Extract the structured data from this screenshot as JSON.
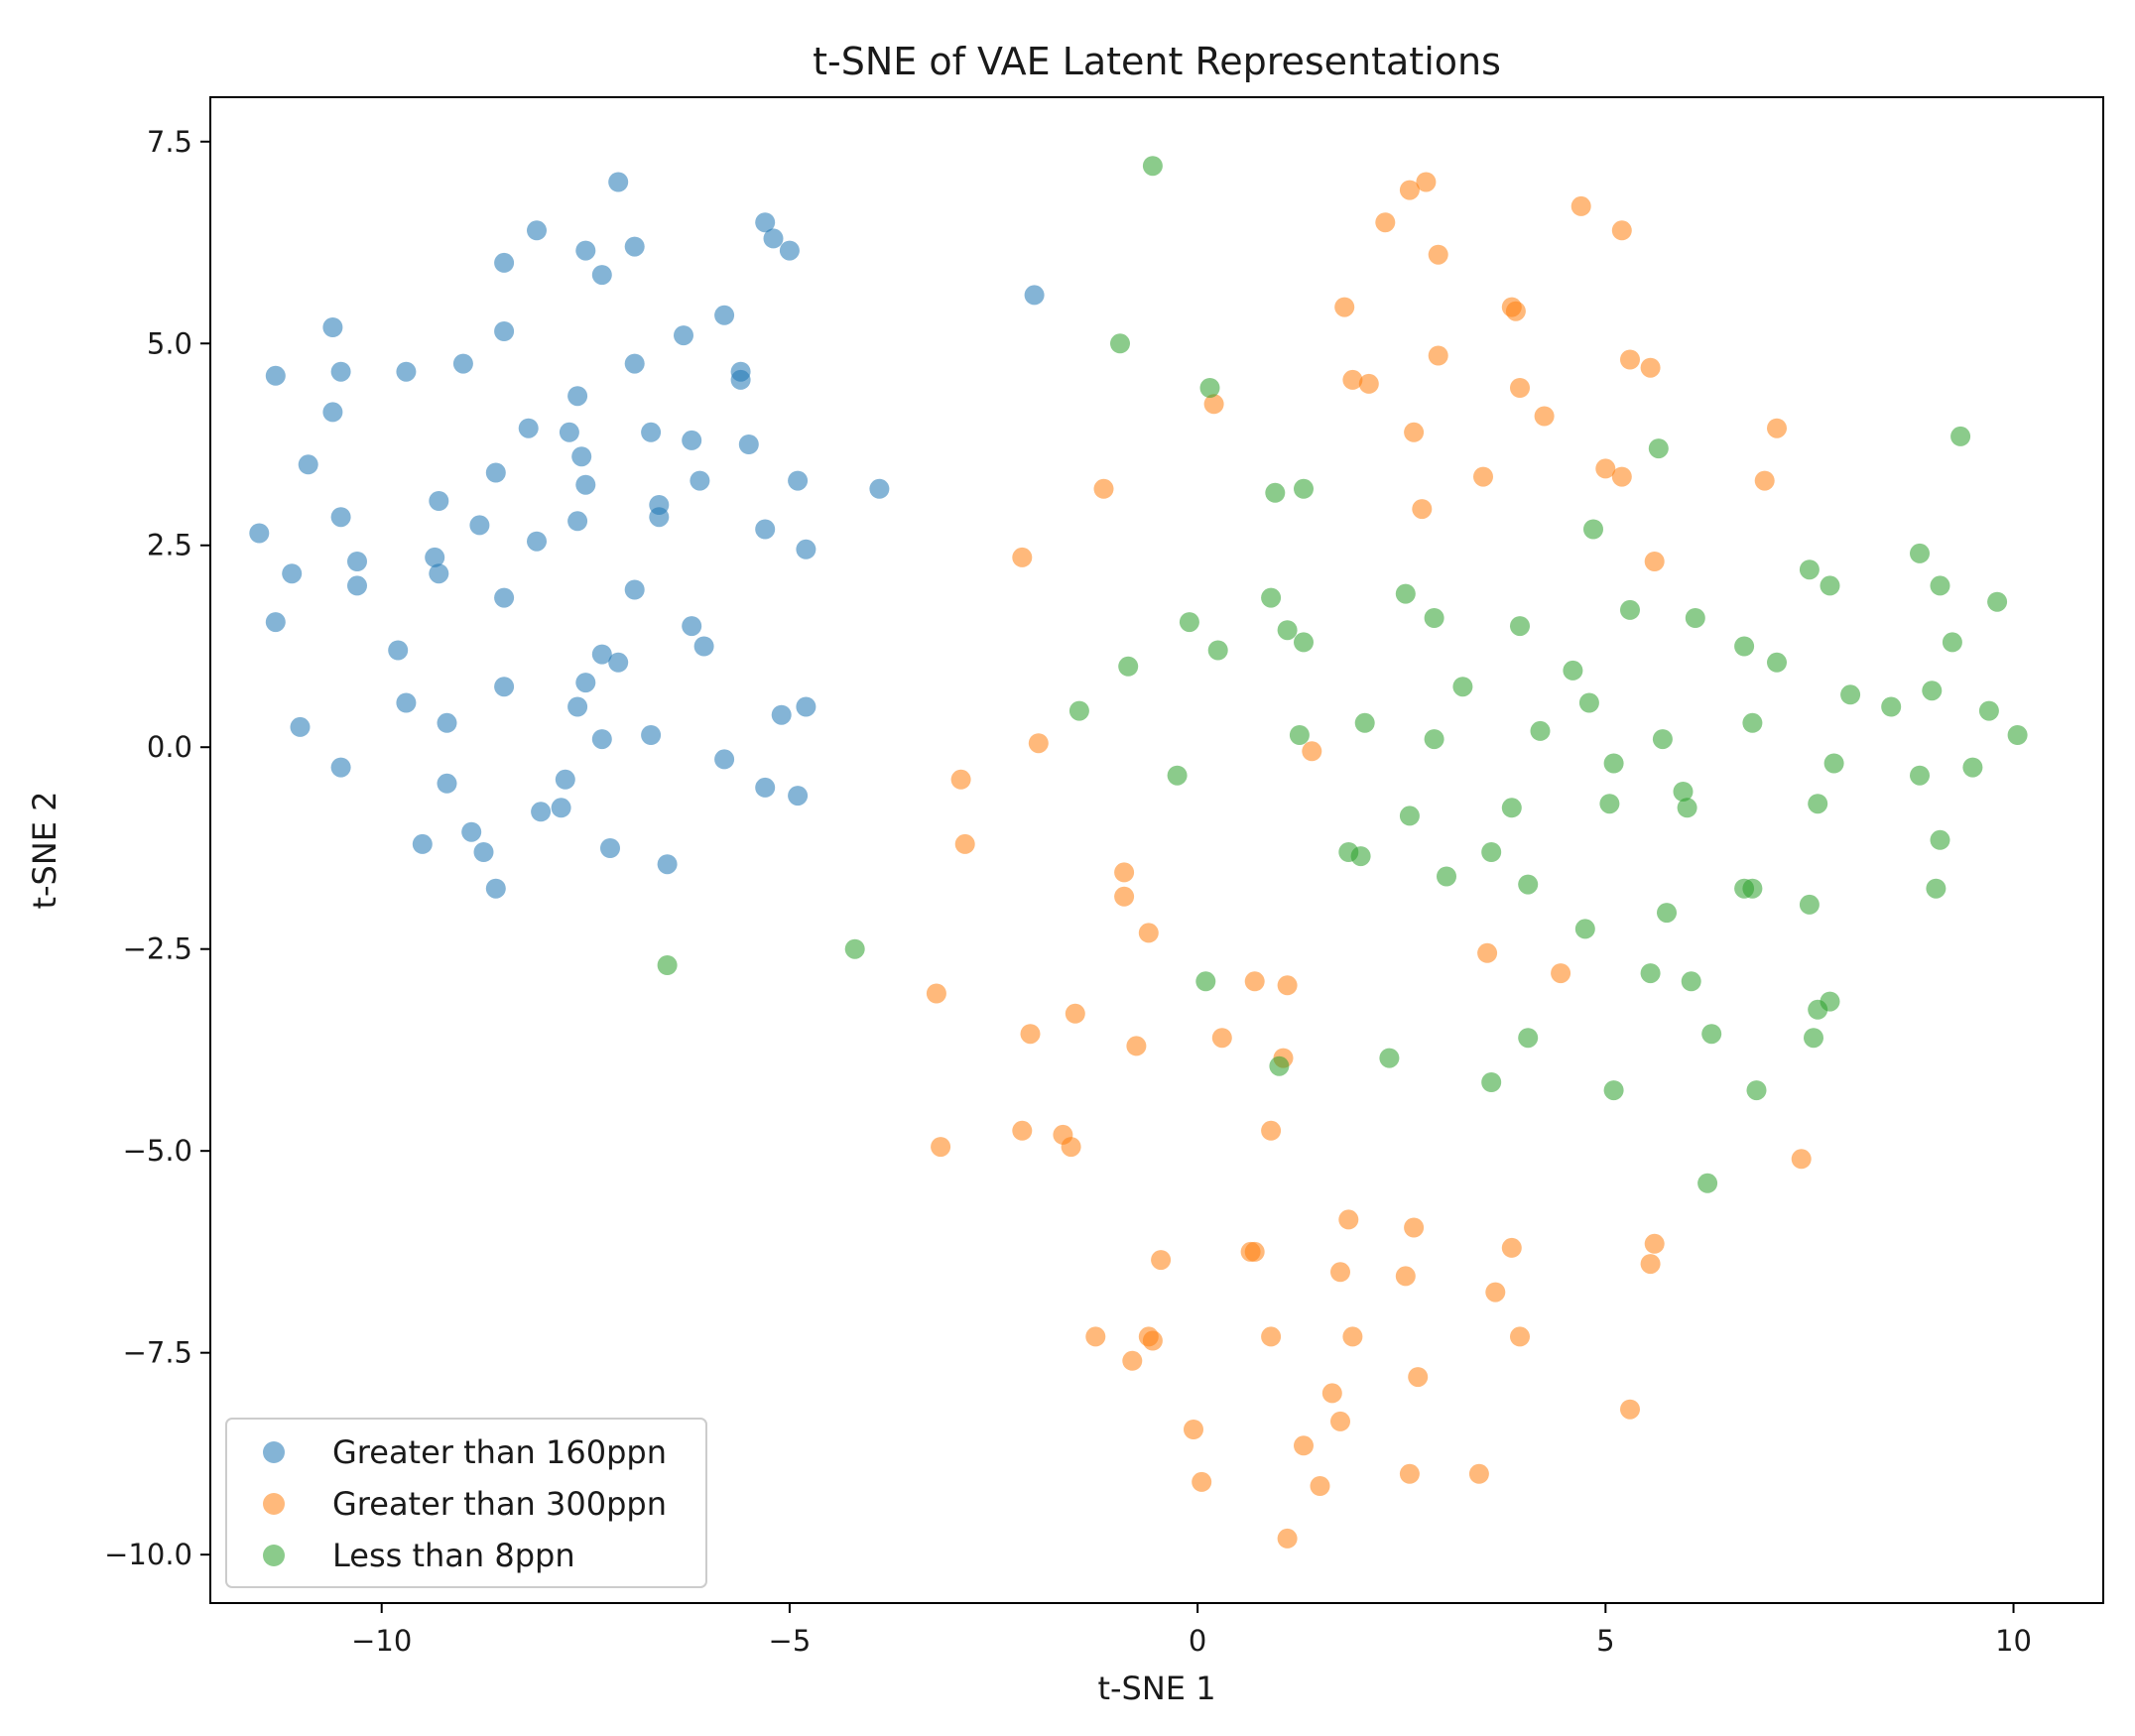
{
  "chart_data": {
    "type": "scatter",
    "title": "t-SNE of VAE Latent Representations",
    "xlabel": "t-SNE 1",
    "ylabel": "t-SNE 2",
    "xlim": [
      -12.1,
      11.1
    ],
    "ylim": [
      -10.6,
      8.05
    ],
    "xticks": [
      -10,
      -5,
      0,
      5,
      10
    ],
    "xtick_labels": [
      "−10",
      "−5",
      "0",
      "5",
      "10"
    ],
    "yticks": [
      7.5,
      5.0,
      2.5,
      0.0,
      -2.5,
      -5.0,
      -7.5,
      -10.0
    ],
    "ytick_labels": [
      "7.5",
      "5.0",
      "2.5",
      "0.0",
      "−2.5",
      "−5.0",
      "−7.5",
      "−10.0"
    ],
    "grid": false,
    "legend_position": "lower-left",
    "series": [
      {
        "name": "Greater than 160ppn",
        "color": "#1f77b4",
        "alpha": 0.55,
        "points": [
          [
            -7.1,
            7.0
          ],
          [
            -8.1,
            6.4
          ],
          [
            -5.3,
            6.5
          ],
          [
            -5.2,
            6.3
          ],
          [
            -5.0,
            6.15
          ],
          [
            -7.5,
            6.15
          ],
          [
            -6.9,
            6.2
          ],
          [
            -8.5,
            6.0
          ],
          [
            -7.3,
            5.85
          ],
          [
            -10.6,
            5.2
          ],
          [
            -11.3,
            4.6
          ],
          [
            -10.5,
            4.65
          ],
          [
            -9.7,
            4.65
          ],
          [
            -9.0,
            4.75
          ],
          [
            -8.5,
            5.15
          ],
          [
            -6.9,
            4.75
          ],
          [
            -6.3,
            5.1
          ],
          [
            -5.8,
            5.35
          ],
          [
            -5.6,
            4.65
          ],
          [
            -5.6,
            4.55
          ],
          [
            -10.6,
            4.15
          ],
          [
            -10.9,
            3.5
          ],
          [
            -8.2,
            3.95
          ],
          [
            -7.7,
            3.9
          ],
          [
            -7.6,
            4.35
          ],
          [
            -6.7,
            3.9
          ],
          [
            -6.2,
            3.8
          ],
          [
            -5.5,
            3.75
          ],
          [
            -7.55,
            3.6
          ],
          [
            -7.5,
            3.25
          ],
          [
            -8.6,
            3.4
          ],
          [
            -9.3,
            3.05
          ],
          [
            -6.6,
            3.0
          ],
          [
            -6.1,
            3.3
          ],
          [
            -4.9,
            3.3
          ],
          [
            -3.9,
            3.2
          ],
          [
            -11.5,
            2.65
          ],
          [
            -10.5,
            2.85
          ],
          [
            -8.8,
            2.75
          ],
          [
            -8.1,
            2.55
          ],
          [
            -7.6,
            2.8
          ],
          [
            -6.6,
            2.85
          ],
          [
            -5.3,
            2.7
          ],
          [
            -4.8,
            2.45
          ],
          [
            -11.1,
            2.15
          ],
          [
            -10.3,
            2.3
          ],
          [
            -10.3,
            2.0
          ],
          [
            -9.35,
            2.35
          ],
          [
            -9.3,
            2.15
          ],
          [
            -8.5,
            1.85
          ],
          [
            -6.9,
            1.95
          ],
          [
            -11.3,
            1.55
          ],
          [
            -9.8,
            1.2
          ],
          [
            -7.3,
            1.15
          ],
          [
            -7.1,
            1.05
          ],
          [
            -6.2,
            1.5
          ],
          [
            -6.05,
            1.25
          ],
          [
            -8.5,
            0.75
          ],
          [
            -7.5,
            0.8
          ],
          [
            -9.7,
            0.55
          ],
          [
            -11.0,
            0.25
          ],
          [
            -9.2,
            0.3
          ],
          [
            -7.6,
            0.5
          ],
          [
            -7.3,
            0.1
          ],
          [
            -6.7,
            0.15
          ],
          [
            -5.1,
            0.4
          ],
          [
            -4.8,
            0.5
          ],
          [
            -5.8,
            -0.15
          ],
          [
            -10.5,
            -0.25
          ],
          [
            -9.2,
            -0.45
          ],
          [
            -7.75,
            -0.4
          ],
          [
            -5.3,
            -0.5
          ],
          [
            -4.9,
            -0.6
          ],
          [
            -9.5,
            -1.2
          ],
          [
            -8.9,
            -1.05
          ],
          [
            -8.75,
            -1.3
          ],
          [
            -8.6,
            -1.75
          ],
          [
            -8.05,
            -0.8
          ],
          [
            -7.8,
            -0.75
          ],
          [
            -7.2,
            -1.25
          ],
          [
            -6.5,
            -1.45
          ],
          [
            -2.0,
            5.6
          ]
        ]
      },
      {
        "name": "Greater than 300ppn",
        "color": "#ff7f0e",
        "alpha": 0.55,
        "points": [
          [
            2.6,
            6.9
          ],
          [
            2.8,
            7.0
          ],
          [
            4.7,
            6.7
          ],
          [
            2.3,
            6.5
          ],
          [
            5.2,
            6.4
          ],
          [
            2.95,
            6.1
          ],
          [
            1.8,
            5.45
          ],
          [
            3.85,
            5.45
          ],
          [
            3.9,
            5.4
          ],
          [
            2.95,
            4.85
          ],
          [
            5.3,
            4.8
          ],
          [
            5.55,
            4.7
          ],
          [
            1.9,
            4.55
          ],
          [
            2.1,
            4.5
          ],
          [
            3.95,
            4.45
          ],
          [
            0.2,
            4.25
          ],
          [
            4.25,
            4.1
          ],
          [
            2.65,
            3.9
          ],
          [
            7.1,
            3.95
          ],
          [
            5.0,
            3.45
          ],
          [
            5.2,
            3.35
          ],
          [
            3.5,
            3.35
          ],
          [
            6.95,
            3.3
          ],
          [
            -1.15,
            3.2
          ],
          [
            2.75,
            2.95
          ],
          [
            -2.15,
            2.35
          ],
          [
            5.6,
            2.3
          ],
          [
            -1.95,
            0.05
          ],
          [
            1.4,
            -0.05
          ],
          [
            -2.9,
            -0.4
          ],
          [
            -2.85,
            -1.2
          ],
          [
            -0.9,
            -1.55
          ],
          [
            -0.9,
            -1.85
          ],
          [
            -0.6,
            -2.3
          ],
          [
            3.55,
            -2.55
          ],
          [
            -3.2,
            -3.05
          ],
          [
            0.7,
            -2.9
          ],
          [
            1.1,
            -2.95
          ],
          [
            4.45,
            -2.8
          ],
          [
            -2.05,
            -3.55
          ],
          [
            -1.5,
            -3.3
          ],
          [
            -0.75,
            -3.7
          ],
          [
            0.3,
            -3.6
          ],
          [
            1.05,
            -3.85
          ],
          [
            -3.15,
            -4.95
          ],
          [
            -2.15,
            -4.75
          ],
          [
            -1.65,
            -4.8
          ],
          [
            -1.55,
            -4.95
          ],
          [
            0.9,
            -4.75
          ],
          [
            7.4,
            -5.1
          ],
          [
            1.85,
            -5.85
          ],
          [
            2.65,
            -5.95
          ],
          [
            3.85,
            -6.2
          ],
          [
            5.6,
            -6.15
          ],
          [
            5.55,
            -6.4
          ],
          [
            -0.45,
            -6.35
          ],
          [
            0.65,
            -6.25
          ],
          [
            0.7,
            -6.25
          ],
          [
            1.75,
            -6.5
          ],
          [
            2.55,
            -6.55
          ],
          [
            3.65,
            -6.75
          ],
          [
            -1.25,
            -7.3
          ],
          [
            -0.6,
            -7.3
          ],
          [
            -0.55,
            -7.35
          ],
          [
            -0.8,
            -7.6
          ],
          [
            0.9,
            -7.3
          ],
          [
            1.9,
            -7.3
          ],
          [
            3.95,
            -7.3
          ],
          [
            2.7,
            -7.8
          ],
          [
            1.65,
            -8.0
          ],
          [
            1.75,
            -8.35
          ],
          [
            5.3,
            -8.2
          ],
          [
            -0.05,
            -8.45
          ],
          [
            0.05,
            -9.1
          ],
          [
            1.3,
            -8.65
          ],
          [
            1.5,
            -9.15
          ],
          [
            2.6,
            -9.0
          ],
          [
            3.45,
            -9.0
          ],
          [
            1.1,
            -9.8
          ]
        ]
      },
      {
        "name": "Less than 8ppn",
        "color": "#2ca02c",
        "alpha": 0.55,
        "points": [
          [
            -0.55,
            7.2
          ],
          [
            -0.95,
            5.0
          ],
          [
            0.15,
            4.45
          ],
          [
            0.95,
            3.15
          ],
          [
            1.3,
            3.2
          ],
          [
            5.65,
            3.7
          ],
          [
            9.35,
            3.85
          ],
          [
            4.85,
            2.7
          ],
          [
            8.85,
            2.4
          ],
          [
            7.5,
            2.2
          ],
          [
            7.75,
            2.0
          ],
          [
            9.1,
            2.0
          ],
          [
            9.8,
            1.8
          ],
          [
            2.55,
            1.9
          ],
          [
            0.9,
            1.85
          ],
          [
            5.3,
            1.7
          ],
          [
            2.9,
            1.6
          ],
          [
            6.1,
            1.6
          ],
          [
            -0.1,
            1.55
          ],
          [
            1.1,
            1.45
          ],
          [
            3.95,
            1.5
          ],
          [
            1.3,
            1.3
          ],
          [
            0.25,
            1.2
          ],
          [
            6.7,
            1.25
          ],
          [
            9.25,
            1.3
          ],
          [
            7.1,
            1.05
          ],
          [
            -0.85,
            1.0
          ],
          [
            4.6,
            0.95
          ],
          [
            3.25,
            0.75
          ],
          [
            8.0,
            0.65
          ],
          [
            9.0,
            0.7
          ],
          [
            4.8,
            0.55
          ],
          [
            8.5,
            0.5
          ],
          [
            9.7,
            0.45
          ],
          [
            -1.45,
            0.45
          ],
          [
            2.05,
            0.3
          ],
          [
            6.8,
            0.3
          ],
          [
            1.25,
            0.15
          ],
          [
            4.2,
            0.2
          ],
          [
            2.9,
            0.1
          ],
          [
            5.7,
            0.1
          ],
          [
            10.05,
            0.15
          ],
          [
            5.1,
            -0.2
          ],
          [
            7.8,
            -0.2
          ],
          [
            -0.25,
            -0.35
          ],
          [
            8.85,
            -0.35
          ],
          [
            9.5,
            -0.25
          ],
          [
            5.95,
            -0.55
          ],
          [
            3.85,
            -0.75
          ],
          [
            5.05,
            -0.7
          ],
          [
            6.0,
            -0.75
          ],
          [
            7.6,
            -0.7
          ],
          [
            2.6,
            -0.85
          ],
          [
            9.1,
            -1.15
          ],
          [
            1.85,
            -1.3
          ],
          [
            2.0,
            -1.35
          ],
          [
            3.6,
            -1.3
          ],
          [
            3.05,
            -1.6
          ],
          [
            4.05,
            -1.7
          ],
          [
            6.7,
            -1.75
          ],
          [
            6.8,
            -1.75
          ],
          [
            9.05,
            -1.75
          ],
          [
            7.5,
            -1.95
          ],
          [
            5.75,
            -2.05
          ],
          [
            4.75,
            -2.25
          ],
          [
            -6.5,
            -2.7
          ],
          [
            -4.2,
            -2.5
          ],
          [
            0.1,
            -2.9
          ],
          [
            5.55,
            -2.8
          ],
          [
            6.05,
            -2.9
          ],
          [
            7.75,
            -3.15
          ],
          [
            7.6,
            -3.25
          ],
          [
            6.3,
            -3.55
          ],
          [
            4.05,
            -3.6
          ],
          [
            7.55,
            -3.6
          ],
          [
            2.35,
            -3.85
          ],
          [
            1.0,
            -3.95
          ],
          [
            3.6,
            -4.15
          ],
          [
            5.1,
            -4.25
          ],
          [
            6.85,
            -4.25
          ],
          [
            6.25,
            -5.4
          ]
        ]
      }
    ]
  }
}
